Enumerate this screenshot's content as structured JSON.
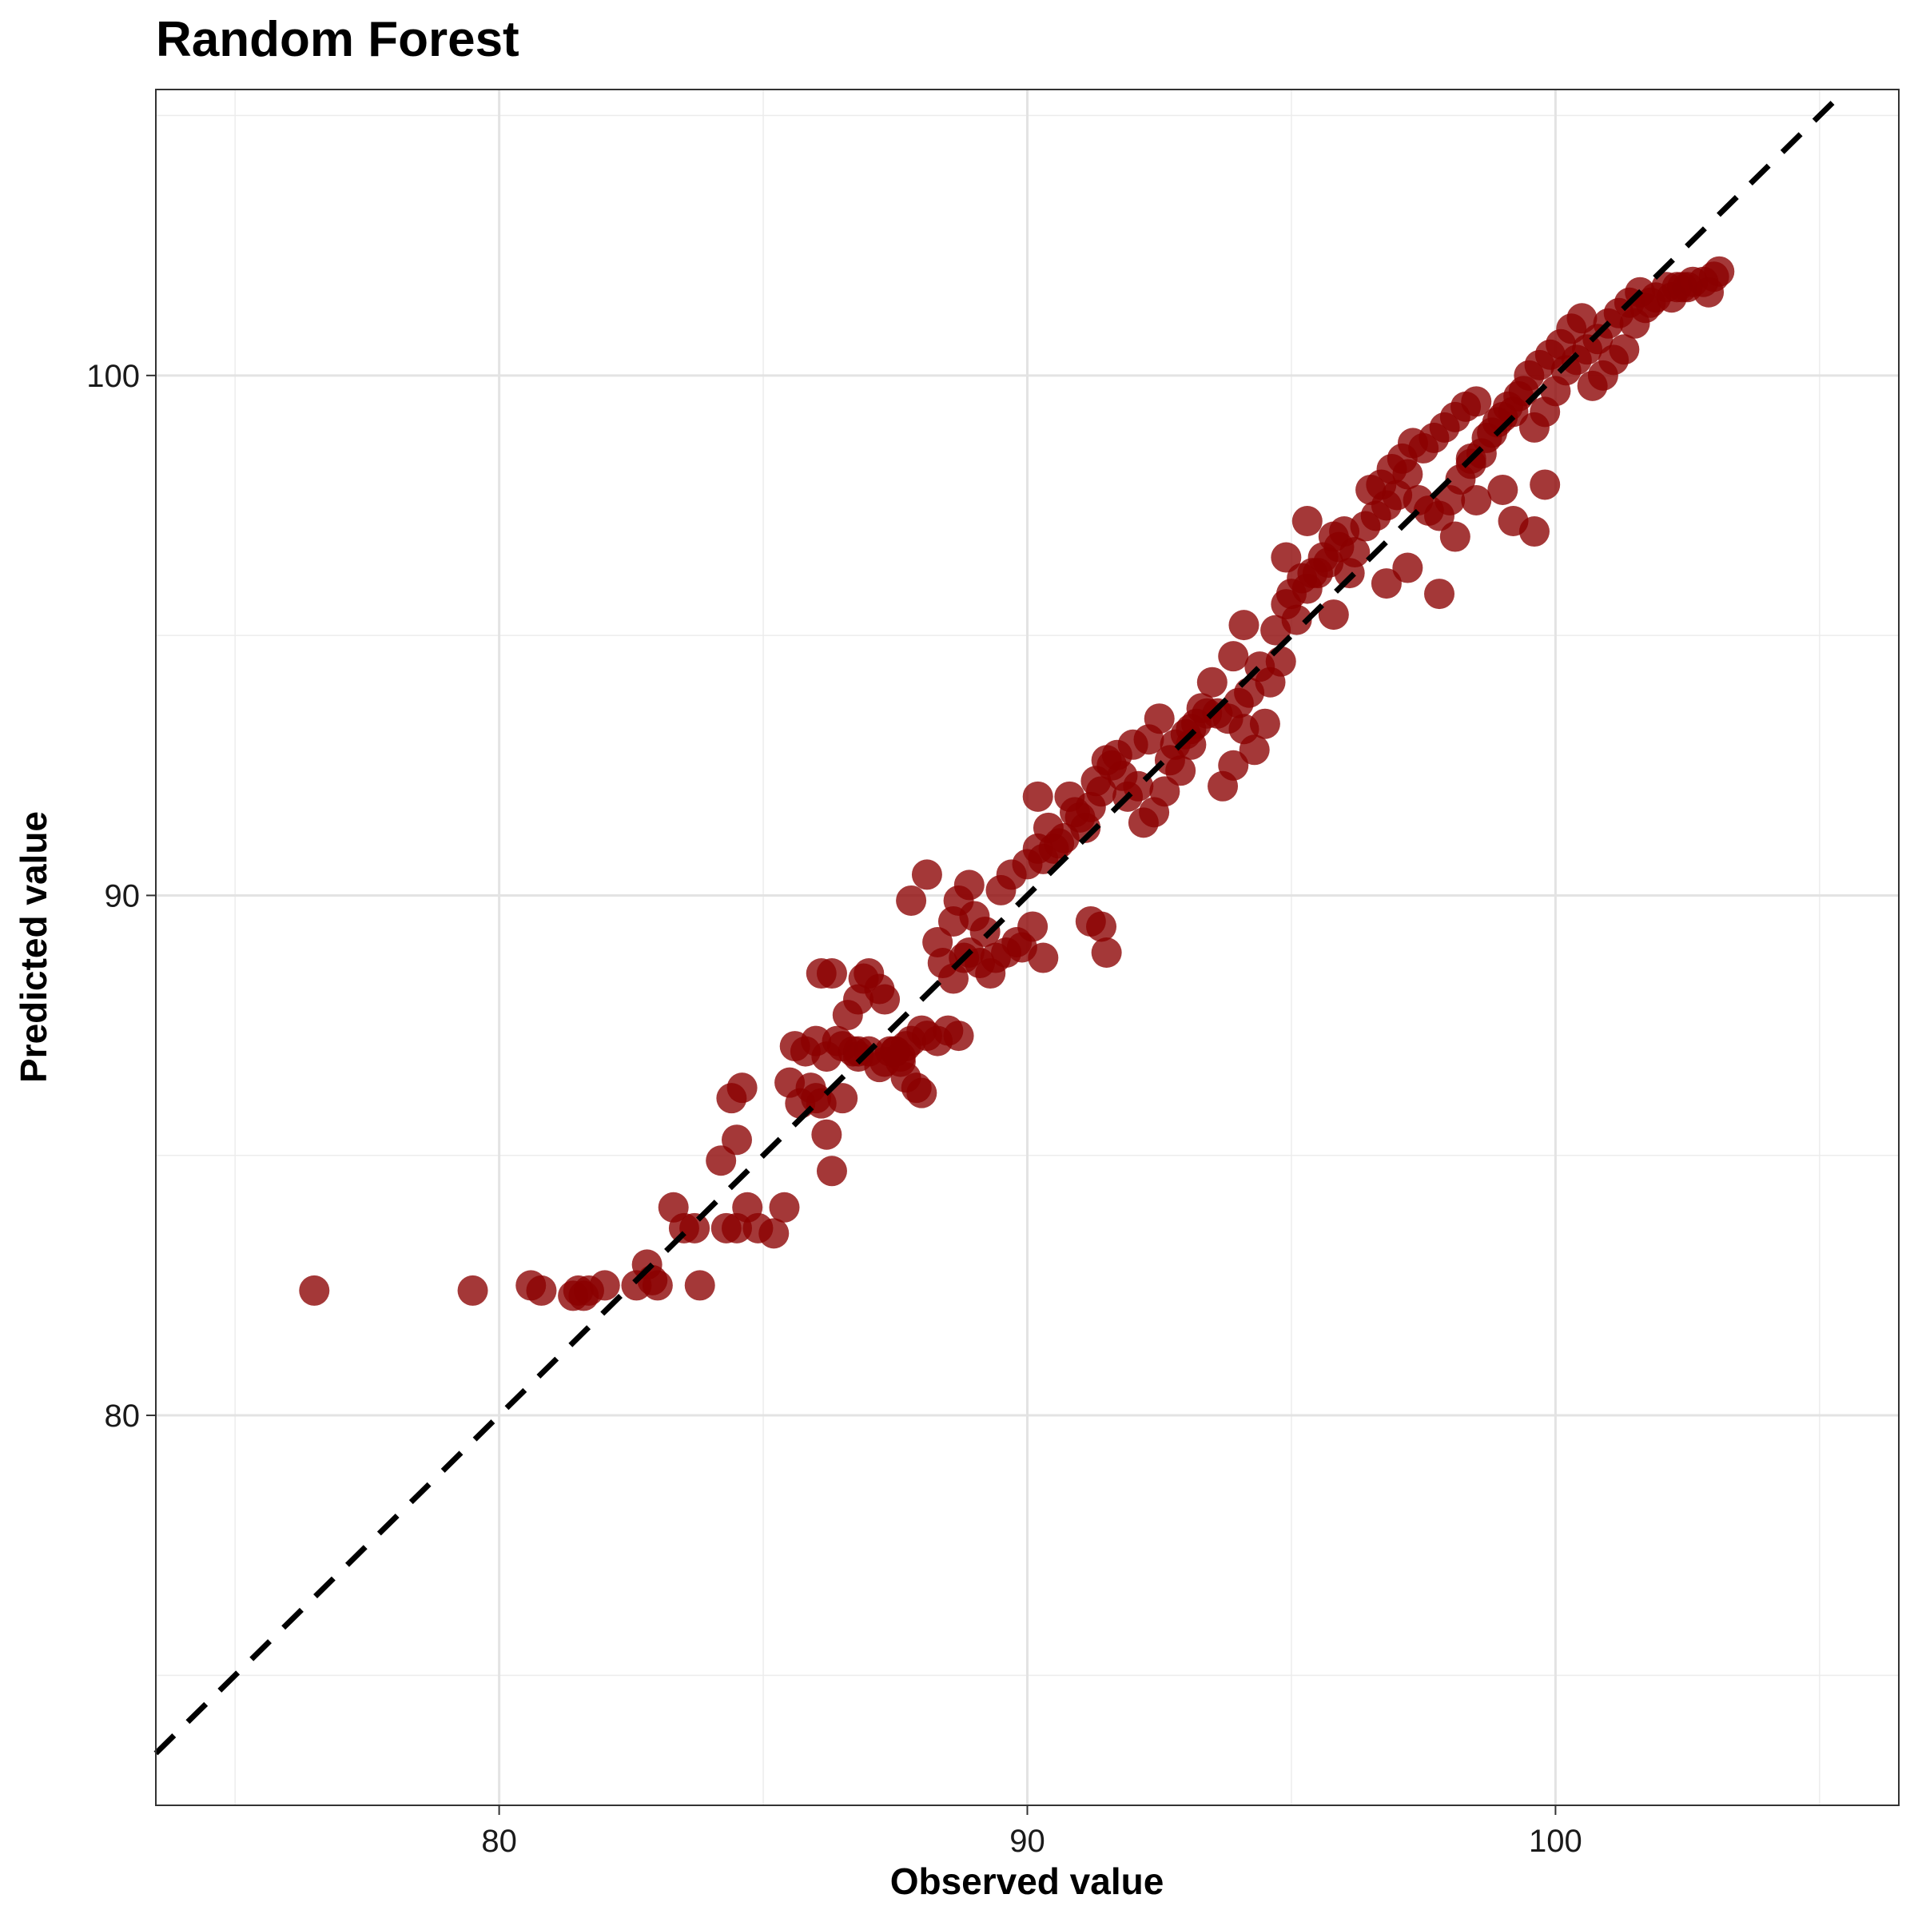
{
  "chart_data": {
    "type": "scatter",
    "title": "Random Forest",
    "xlabel": "Observed value",
    "ylabel": "Predicted value",
    "xlim": [
      73.5,
      106.5
    ],
    "ylim": [
      72.5,
      105.5
    ],
    "x_ticks": [
      80,
      90,
      100
    ],
    "y_ticks": [
      80,
      90,
      100
    ],
    "x_minor": [
      75,
      85,
      95,
      105
    ],
    "y_minor": [
      75,
      85,
      95,
      105
    ],
    "grid": true,
    "legend": "none",
    "point_color": "#8b0000",
    "reference_line": {
      "style": "dashed",
      "color": "#000000",
      "slope": 1,
      "intercept": 0
    },
    "series": [
      {
        "x": [
          76.5,
          79.5,
          80.6,
          80.8,
          81.4,
          81.5,
          81.6,
          81.7,
          82.0,
          82.6,
          82.8,
          82.9,
          83.0,
          83.8,
          83.3,
          83.5,
          83.7,
          84.2,
          84.4,
          84.5,
          84.6,
          84.9,
          85.2,
          84.3,
          84.5,
          84.7,
          85.4,
          85.5,
          85.7,
          85.6,
          85.8,
          86.0,
          86.2,
          86.1,
          86.3,
          86.4,
          86.5,
          86.7,
          86.8,
          86.3,
          86.2,
          85.9,
          86.0,
          86.1,
          86.5,
          86.6,
          86.8,
          86.9,
          87.0,
          87.2,
          87.3,
          87.5,
          87.6,
          87.7,
          87.8,
          88.0,
          88.1,
          88.3,
          88.5,
          88.7,
          87.9,
          88.0,
          87.6,
          87.5,
          87.4,
          87.7,
          87.3,
          87.2,
          87.0,
          86.8,
          88.4,
          88.6,
          88.8,
          88.9,
          89.1,
          89.3,
          89.4,
          89.6,
          89.2,
          89.0,
          88.9,
          88.7,
          89.5,
          89.7,
          90.0,
          90.2,
          90.4,
          90.1,
          89.9,
          89.8,
          90.5,
          90.7,
          90.9,
          91.0,
          91.2,
          91.4,
          91.1,
          90.8,
          90.6,
          90.3,
          90.2,
          91.3,
          91.5,
          91.6,
          91.8,
          92.0,
          91.7,
          91.9,
          92.1,
          92.3,
          92.5,
          92.7,
          92.9,
          93.1,
          93.3,
          93.5,
          92.6,
          92.4,
          92.2,
          92.8,
          93.0,
          93.2,
          93.4,
          93.6,
          93.8,
          94.0,
          94.2,
          94.4,
          94.6,
          94.8,
          93.7,
          93.9,
          94.1,
          94.3,
          94.5,
          94.7,
          94.9,
          95.1,
          95.3,
          95.5,
          95.7,
          95.9,
          96.1,
          95.0,
          95.2,
          95.4,
          95.6,
          95.8,
          96.0,
          96.2,
          96.4,
          96.6,
          96.8,
          97.0,
          97.2,
          96.5,
          96.7,
          96.9,
          97.1,
          97.3,
          97.5,
          97.7,
          97.9,
          98.1,
          98.3,
          98.5,
          97.4,
          97.6,
          97.8,
          98.0,
          98.2,
          98.4,
          98.6,
          98.8,
          99.0,
          99.2,
          99.4,
          98.7,
          98.9,
          99.1,
          99.3,
          99.5,
          99.7,
          99.9,
          100.1,
          100.3,
          100.5,
          99.6,
          99.8,
          100.0,
          100.2,
          100.4,
          100.6,
          100.8,
          101.0,
          101.2,
          101.4,
          101.6,
          100.7,
          100.9,
          101.1,
          101.3,
          101.5,
          101.7,
          101.9,
          102.1,
          102.3,
          102.5,
          102.8,
          103.0,
          103.1,
          102.9,
          102.6,
          102.4,
          102.2,
          101.8,
          98.4,
          99.0,
          99.2,
          99.6,
          99.8,
          98.5,
          94.9,
          95.3,
          95.8,
          97.2,
          97.8,
          98.1,
          96.8,
          91.4,
          91.5,
          91.2,
          90.3,
          87.8,
          88.1,
          88.3,
          88.6,
          93.1,
          93.9,
          94.1
        ],
        "y": [
          82.4,
          82.4,
          82.5,
          82.4,
          82.3,
          82.4,
          82.3,
          82.4,
          82.5,
          82.5,
          82.9,
          82.6,
          82.5,
          82.5,
          84.0,
          83.6,
          83.6,
          84.9,
          86.1,
          85.3,
          86.3,
          83.6,
          83.5,
          83.6,
          83.6,
          84.0,
          84.0,
          86.4,
          86.0,
          87.1,
          87.0,
          87.2,
          86.9,
          88.5,
          88.5,
          87.2,
          87.1,
          87.0,
          87.0,
          84.7,
          85.4,
          86.3,
          86.1,
          86.0,
          86.1,
          87.7,
          88.0,
          88.4,
          88.5,
          88.2,
          88.0,
          87.0,
          86.8,
          86.5,
          87.2,
          87.4,
          87.3,
          87.2,
          87.4,
          87.3,
          86.3,
          86.2,
          86.9,
          87.0,
          87.0,
          87.1,
          86.8,
          86.7,
          87.0,
          86.9,
          88.7,
          88.4,
          88.8,
          88.9,
          88.7,
          88.5,
          88.8,
          88.9,
          89.3,
          89.6,
          90.2,
          89.9,
          90.1,
          90.4,
          90.6,
          90.9,
          91.3,
          89.4,
          89.0,
          89.1,
          90.9,
          91.1,
          91.6,
          91.5,
          91.7,
          92.0,
          91.3,
          91.9,
          91.0,
          90.7,
          91.9,
          92.2,
          92.6,
          92.5,
          92.3,
          92.9,
          92.7,
          91.9,
          92.1,
          93.0,
          93.4,
          92.6,
          92.4,
          93.2,
          93.6,
          94.1,
          92.0,
          91.6,
          91.4,
          92.9,
          93.1,
          93.3,
          93.5,
          93.5,
          93.4,
          93.7,
          93.9,
          94.4,
          94.1,
          94.5,
          92.1,
          92.5,
          93.2,
          92.8,
          93.3,
          95.1,
          95.6,
          95.3,
          95.9,
          96.2,
          96.4,
          96.7,
          96.2,
          95.8,
          96.1,
          96.2,
          96.5,
          96.9,
          97.0,
          96.6,
          97.1,
          97.3,
          97.5,
          97.7,
          98.1,
          97.8,
          97.9,
          98.2,
          98.4,
          98.7,
          98.6,
          98.8,
          99.0,
          99.2,
          99.4,
          99.5,
          97.6,
          97.4,
          97.3,
          97.6,
          98.0,
          98.3,
          98.5,
          98.9,
          99.2,
          99.3,
          99.7,
          98.8,
          99.1,
          99.4,
          99.6,
          100.0,
          100.2,
          100.4,
          100.6,
          100.9,
          101.1,
          99.0,
          99.3,
          99.7,
          100.1,
          100.3,
          100.5,
          100.7,
          101.0,
          101.2,
          101.4,
          101.6,
          99.8,
          100.0,
          100.3,
          100.5,
          101.0,
          101.3,
          101.5,
          101.7,
          101.7,
          101.7,
          101.8,
          101.9,
          102.0,
          101.6,
          101.8,
          101.7,
          101.5,
          101.4,
          98.4,
          97.8,
          97.2,
          97.0,
          97.9,
          97.6,
          96.5,
          97.2,
          95.4,
          96.3,
          95.8,
          96.9,
          96.0,
          89.4,
          88.9,
          89.5,
          88.8,
          89.9,
          90.4,
          89.1,
          89.5,
          92.9,
          94.6,
          95.2
        ]
      }
    ]
  }
}
